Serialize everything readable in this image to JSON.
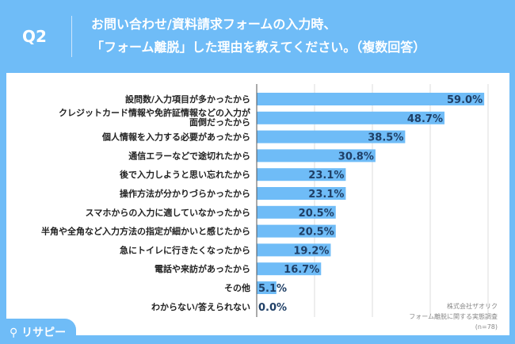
{
  "header": {
    "q": "Q2",
    "title_line1": "お問い合わせ/資料請求フォームの入力時、",
    "title_line2": "「フォーム離脱」した理由を教えてください。（複数回答）"
  },
  "chart_data": {
    "type": "bar",
    "orientation": "horizontal",
    "categories": [
      "設問数/入力項目が多かったから",
      "クレジットカード情報や免許証情報などの入力が面倒だったから",
      "個人情報を入力する必要があったから",
      "通信エラーなどで途切れたから",
      "後で入力しようと思い忘れたから",
      "操作方法が分かりづらかったから",
      "スマホからの入力に適していなかったから",
      "半角や全角など入力方法の指定が細かいと感じたから",
      "急にトイレに行きたくなったから",
      "電話や来訪があったから",
      "その他",
      "わからない/答えられない"
    ],
    "values": [
      59.0,
      48.7,
      38.5,
      30.8,
      23.1,
      23.1,
      20.5,
      20.5,
      19.2,
      16.7,
      5.1,
      0.0
    ],
    "value_labels": [
      "59.0%",
      "48.7%",
      "38.5%",
      "30.8%",
      "23.1%",
      "23.1%",
      "20.5%",
      "20.5%",
      "19.2%",
      "16.7%",
      "5.1%",
      "0.0%"
    ],
    "xlim": [
      0,
      60
    ],
    "grid": true,
    "bar_color": "#6fbcf7"
  },
  "note": {
    "line1": "株式会社ザオリク",
    "line2": "フォーム離脱に関する実態調査",
    "line3": "(n=78)"
  },
  "logo": "リサピー"
}
